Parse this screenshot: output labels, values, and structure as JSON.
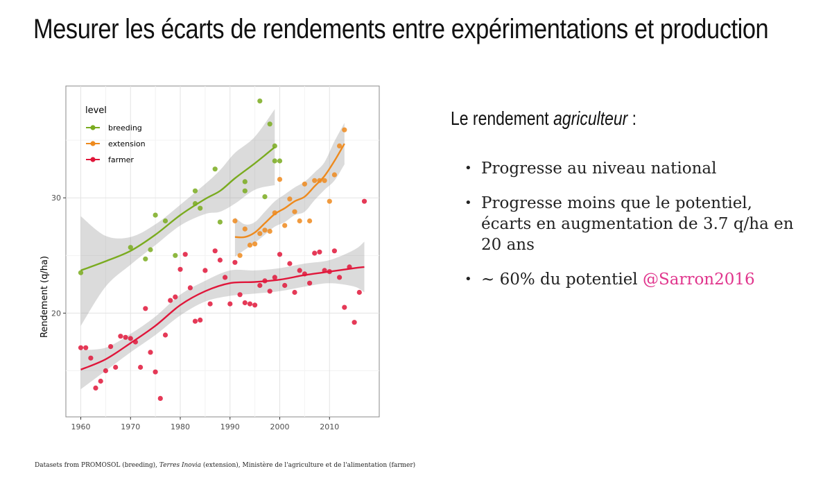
{
  "slide": {
    "title": "Mesurer les écarts de rendements entre expérimentations et production",
    "subtitle_prefix": "Le rendement ",
    "subtitle_emph": "agriculteur",
    "subtitle_suffix": " :",
    "bullets": [
      {
        "text": "Progresse au niveau national",
        "cite": ""
      },
      {
        "text": "Progresse moins que le potentiel, écarts en augmentation de 3.7 q/ha en 20 ans",
        "cite": ""
      },
      {
        "text": "~ 60% du potentiel ",
        "cite": "@Sarron2016"
      }
    ],
    "footer": {
      "prefix": "Datasets from PROMOSOL (breeding), ",
      "emph": "Terres Inovia",
      "suffix": " (extension), Ministère de l'agriculture et de l'alimentation (farmer)"
    }
  },
  "chart_data": {
    "type": "scatter",
    "xlabel": "",
    "ylabel": "Rendement (q/ha)",
    "xlim": [
      1957,
      2020
    ],
    "ylim": [
      11,
      39.7
    ],
    "xticks": [
      1960,
      1970,
      1980,
      1990,
      2000,
      2010
    ],
    "yticks": [
      20,
      30
    ],
    "grid": true,
    "legend": {
      "title": "level",
      "position": "top-left"
    },
    "series": [
      {
        "name": "breeding",
        "color": "#7aab1f",
        "points": [
          [
            1960,
            23.5
          ],
          [
            1970,
            25.7
          ],
          [
            1973,
            24.7
          ],
          [
            1974,
            25.5
          ],
          [
            1975,
            28.5
          ],
          [
            1977,
            28
          ],
          [
            1979,
            25
          ],
          [
            1983,
            30.6
          ],
          [
            1983,
            29.5
          ],
          [
            1984,
            29.1
          ],
          [
            1987,
            32.5
          ],
          [
            1988,
            27.9
          ],
          [
            1993,
            31.4
          ],
          [
            1993,
            30.6
          ],
          [
            1996,
            38.4
          ],
          [
            1997,
            30.1
          ],
          [
            1998,
            36.4
          ],
          [
            1999,
            34.5
          ],
          [
            1999,
            33.2
          ],
          [
            2000,
            33.2
          ]
        ],
        "smooth": [
          [
            1960,
            23.7
          ],
          [
            1965,
            24.5
          ],
          [
            1970,
            25.4
          ],
          [
            1975,
            26.8
          ],
          [
            1980,
            28.5
          ],
          [
            1985,
            29.9
          ],
          [
            1988,
            30.6
          ],
          [
            1991,
            31.7
          ],
          [
            1995,
            33
          ],
          [
            1999,
            34.4
          ]
        ],
        "band_upper": [
          [
            1960,
            28.4
          ],
          [
            1965,
            26.7
          ],
          [
            1970,
            26.6
          ],
          [
            1975,
            27.7
          ],
          [
            1980,
            29.4
          ],
          [
            1985,
            31.2
          ],
          [
            1988,
            32.4
          ],
          [
            1991,
            33.9
          ],
          [
            1995,
            35.3
          ],
          [
            1999,
            37.7
          ]
        ],
        "band_lower": [
          [
            1960,
            18.9
          ],
          [
            1965,
            22.3
          ],
          [
            1970,
            24.2
          ],
          [
            1975,
            25.9
          ],
          [
            1980,
            27.6
          ],
          [
            1985,
            28.6
          ],
          [
            1988,
            28.8
          ],
          [
            1991,
            29.5
          ],
          [
            1995,
            30.7
          ],
          [
            1999,
            31.1
          ]
        ]
      },
      {
        "name": "extension",
        "color": "#ee8a1d",
        "points": [
          [
            1991,
            28
          ],
          [
            1992,
            25
          ],
          [
            1993,
            27.3
          ],
          [
            1994,
            25.9
          ],
          [
            1995,
            26
          ],
          [
            1996,
            26.9
          ],
          [
            1997,
            27.2
          ],
          [
            1998,
            27.1
          ],
          [
            1999,
            28.7
          ],
          [
            2000,
            31.6
          ],
          [
            2001,
            27.6
          ],
          [
            2002,
            29.9
          ],
          [
            2003,
            28.8
          ],
          [
            2004,
            28
          ],
          [
            2005,
            31.2
          ],
          [
            2006,
            28
          ],
          [
            2007,
            31.5
          ],
          [
            2008,
            31.5
          ],
          [
            2009,
            31.5
          ],
          [
            2010,
            29.7
          ],
          [
            2011,
            32
          ],
          [
            2012,
            34.5
          ],
          [
            2013,
            35.9
          ]
        ],
        "smooth": [
          [
            1991,
            26.6
          ],
          [
            1993,
            26.6
          ],
          [
            1995,
            27
          ],
          [
            1997,
            27.8
          ],
          [
            1999,
            28.6
          ],
          [
            2001,
            29.1
          ],
          [
            2003,
            29.7
          ],
          [
            2005,
            30.1
          ],
          [
            2007,
            31
          ],
          [
            2009,
            31.9
          ],
          [
            2011,
            33.2
          ],
          [
            2013,
            34.7
          ]
        ],
        "band_upper": [
          [
            1991,
            28.3
          ],
          [
            1993,
            27.7
          ],
          [
            1995,
            27.9
          ],
          [
            1997,
            28.8
          ],
          [
            1999,
            29.7
          ],
          [
            2001,
            30.3
          ],
          [
            2003,
            30.9
          ],
          [
            2005,
            31.4
          ],
          [
            2007,
            32.2
          ],
          [
            2009,
            33.1
          ],
          [
            2011,
            34.9
          ],
          [
            2013,
            36.5
          ]
        ],
        "band_lower": [
          [
            1991,
            24.9
          ],
          [
            1993,
            25.5
          ],
          [
            1995,
            26.1
          ],
          [
            1997,
            26.8
          ],
          [
            1999,
            27.5
          ],
          [
            2001,
            27.9
          ],
          [
            2003,
            28.5
          ],
          [
            2005,
            28.8
          ],
          [
            2007,
            29.8
          ],
          [
            2009,
            30.7
          ],
          [
            2011,
            31.5
          ],
          [
            2013,
            32.9
          ]
        ]
      },
      {
        "name": "farmer",
        "color": "#e0163a",
        "points": [
          [
            1960,
            17
          ],
          [
            1961,
            17
          ],
          [
            1962,
            16.1
          ],
          [
            1963,
            13.5
          ],
          [
            1964,
            14.1
          ],
          [
            1965,
            15
          ],
          [
            1966,
            17.1
          ],
          [
            1967,
            15.3
          ],
          [
            1968,
            18
          ],
          [
            1969,
            17.9
          ],
          [
            1970,
            17.8
          ],
          [
            1971,
            17.5
          ],
          [
            1972,
            15.3
          ],
          [
            1973,
            20.4
          ],
          [
            1974,
            16.6
          ],
          [
            1975,
            14.9
          ],
          [
            1976,
            12.6
          ],
          [
            1977,
            18.1
          ],
          [
            1978,
            21.1
          ],
          [
            1979,
            21.4
          ],
          [
            1980,
            23.8
          ],
          [
            1981,
            25.1
          ],
          [
            1982,
            22.2
          ],
          [
            1983,
            19.3
          ],
          [
            1984,
            19.4
          ],
          [
            1985,
            23.7
          ],
          [
            1986,
            20.8
          ],
          [
            1987,
            25.4
          ],
          [
            1988,
            24.6
          ],
          [
            1989,
            23.1
          ],
          [
            1990,
            20.8
          ],
          [
            1991,
            24.4
          ],
          [
            1992,
            21.6
          ],
          [
            1993,
            20.9
          ],
          [
            1994,
            20.8
          ],
          [
            1995,
            20.7
          ],
          [
            1996,
            22.4
          ],
          [
            1997,
            22.8
          ],
          [
            1998,
            21.9
          ],
          [
            1999,
            23.1
          ],
          [
            2000,
            25.1
          ],
          [
            2001,
            22.4
          ],
          [
            2002,
            24.3
          ],
          [
            2003,
            21.8
          ],
          [
            2004,
            23.7
          ],
          [
            2005,
            23.4
          ],
          [
            2006,
            22.6
          ],
          [
            2007,
            25.2
          ],
          [
            2008,
            25.3
          ],
          [
            2009,
            23.7
          ],
          [
            2010,
            23.6
          ],
          [
            2011,
            25.4
          ],
          [
            2012,
            23.1
          ],
          [
            2013,
            20.5
          ],
          [
            2014,
            24
          ],
          [
            2015,
            19.2
          ],
          [
            2016,
            21.8
          ],
          [
            2017,
            29.7
          ]
        ],
        "smooth": [
          [
            1960,
            15.1
          ],
          [
            1965,
            16
          ],
          [
            1970,
            17.4
          ],
          [
            1975,
            18.9
          ],
          [
            1980,
            20.7
          ],
          [
            1985,
            21.9
          ],
          [
            1990,
            22.6
          ],
          [
            1995,
            22.7
          ],
          [
            2000,
            22.9
          ],
          [
            2005,
            23.3
          ],
          [
            2010,
            23.6
          ],
          [
            2015,
            23.9
          ],
          [
            2017,
            24
          ]
        ],
        "band_upper": [
          [
            1960,
            16.8
          ],
          [
            1965,
            17
          ],
          [
            1970,
            18.2
          ],
          [
            1975,
            19.7
          ],
          [
            1980,
            21.6
          ],
          [
            1985,
            22.8
          ],
          [
            1990,
            23.7
          ],
          [
            1995,
            23.7
          ],
          [
            2000,
            23.9
          ],
          [
            2005,
            24.3
          ],
          [
            2010,
            24.6
          ],
          [
            2015,
            25.5
          ],
          [
            2017,
            26.2
          ]
        ],
        "band_lower": [
          [
            1960,
            13.4
          ],
          [
            1965,
            15
          ],
          [
            1970,
            16.6
          ],
          [
            1975,
            18.1
          ],
          [
            1980,
            19.8
          ],
          [
            1985,
            21
          ],
          [
            1990,
            21.5
          ],
          [
            1995,
            21.7
          ],
          [
            2000,
            21.9
          ],
          [
            2005,
            22.3
          ],
          [
            2010,
            22.6
          ],
          [
            2015,
            22.3
          ],
          [
            2017,
            21.8
          ]
        ]
      }
    ]
  }
}
